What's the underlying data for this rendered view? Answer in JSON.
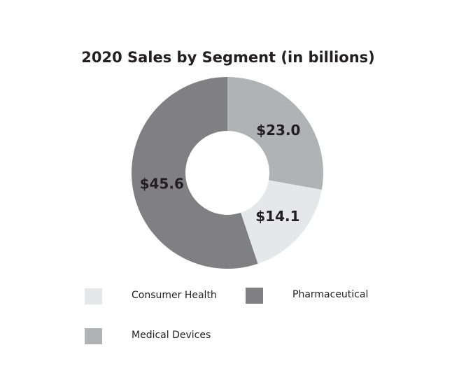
{
  "chart_data": {
    "type": "pie",
    "donut": true,
    "title": "2020 Sales by Segment (in billions)",
    "categories": [
      "Medical Devices",
      "Consumer Health",
      "Pharmaceutical"
    ],
    "values": [
      23.0,
      14.1,
      45.6
    ],
    "labels": [
      "$23.0",
      "$14.1",
      "$45.6"
    ],
    "colors": [
      "#b1b2b4",
      "#e6e7e8",
      "#808083"
    ],
    "legend": {
      "placement": "bottom",
      "items": [
        {
          "label": "Consumer Health",
          "color": "#e6e7e8"
        },
        {
          "label": "Pharmaceutical",
          "color": "#808083"
        },
        {
          "label": "Medical Devices",
          "color": "#b1b2b4"
        }
      ]
    }
  }
}
